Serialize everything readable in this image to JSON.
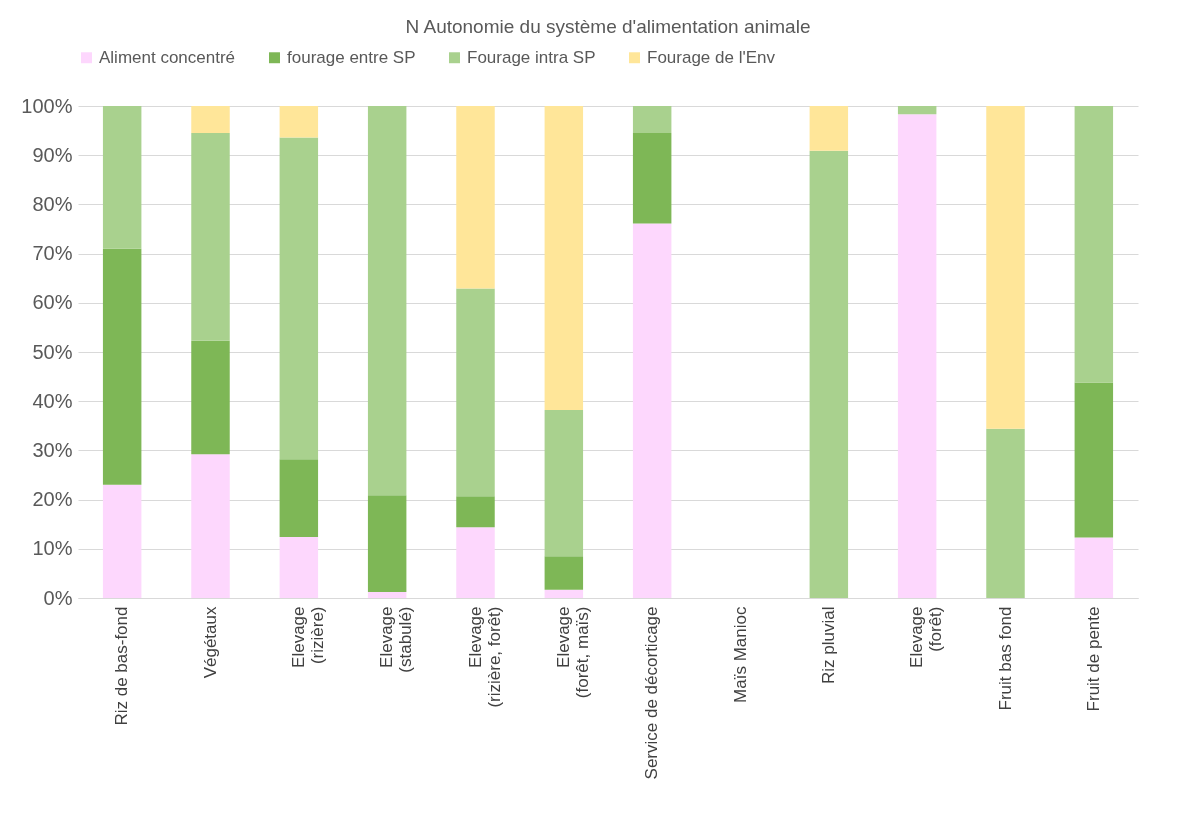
{
  "chart_data": {
    "type": "bar",
    "stacked": true,
    "title": "N Autonomie du système d'alimentation animale",
    "categories": [
      "Riz de bas-fond",
      "Végétaux",
      "Elevage (rizière)",
      "Elevage (stabulé)",
      "Elevage (rizière, forêt)",
      "Elevage (forêt, maïs)",
      "Service de décorticage",
      "Maïs Manioc",
      "Riz pluvial",
      "Elevage (forêt)",
      "Fruit bas fond",
      "Fruit de pente"
    ],
    "series": [
      {
        "name": "Aliment concentré",
        "color": "#fdd7fd",
        "values": [
          23,
          29.2,
          12.4,
          1.2,
          14.4,
          1.7,
          76.1,
          0,
          0,
          98.3,
          0,
          12.3
        ]
      },
      {
        "name": "fourage entre SP",
        "color": "#7eb756",
        "values": [
          48,
          23.1,
          15.8,
          19.7,
          6.3,
          6.8,
          18.4,
          0,
          0,
          0,
          0,
          31.5
        ]
      },
      {
        "name": "Fourage intra SP",
        "color": "#a9d18e",
        "values": [
          29,
          42.2,
          65.4,
          79.1,
          42.2,
          29.7,
          5.5,
          0,
          90.9,
          1.7,
          34.4,
          56.2
        ]
      },
      {
        "name": "Fourage de l'Env",
        "color": "#ffe699",
        "values": [
          0,
          5.5,
          6.4,
          0,
          37.1,
          61.8,
          0,
          0,
          9.1,
          0,
          65.6,
          0
        ]
      }
    ],
    "ylim": [
      0,
      100
    ],
    "yticks": [
      {
        "value": 0,
        "label": "0%"
      },
      {
        "value": 10,
        "label": "10%"
      },
      {
        "value": 20,
        "label": "20%"
      },
      {
        "value": 30,
        "label": "30%"
      },
      {
        "value": 40,
        "label": "40%"
      },
      {
        "value": 50,
        "label": "50%"
      },
      {
        "value": 60,
        "label": "60%"
      },
      {
        "value": 70,
        "label": "70%"
      },
      {
        "value": 80,
        "label": "80%"
      },
      {
        "value": 90,
        "label": "90%"
      },
      {
        "value": 100,
        "label": "100%"
      }
    ],
    "grid": "y",
    "legend": "top"
  }
}
